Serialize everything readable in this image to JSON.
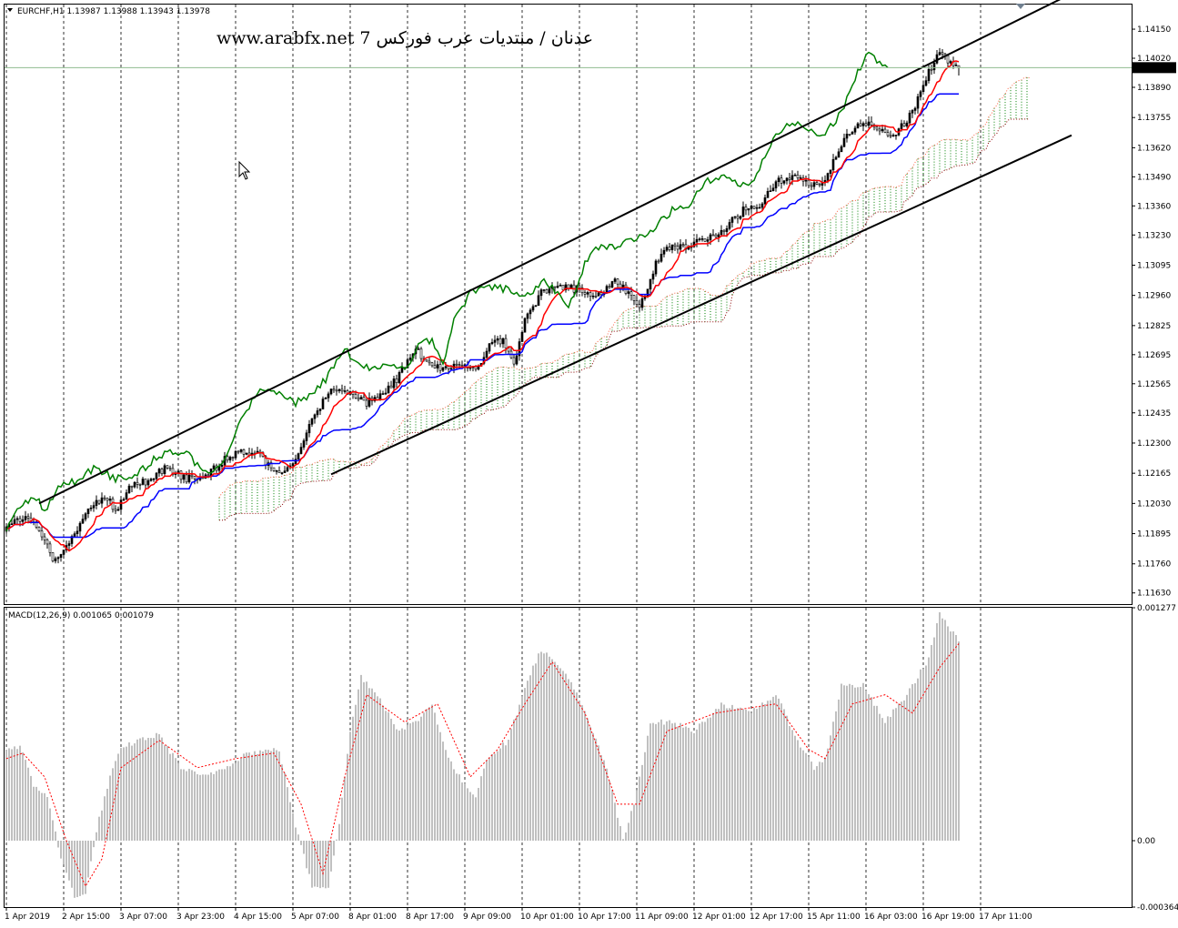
{
  "header": {
    "symbol_info": "EURCHF,H1  1.13987 1.13988 1.13943 1.13978",
    "watermark": "www.arabfx.net 7 عدنان / منتديات عرب فوركس"
  },
  "chart_data": [
    {
      "type": "candlestick",
      "title": "EURCHF,H1",
      "ohlc_last": {
        "open": 1.13987,
        "high": 1.13988,
        "low": 1.13943,
        "close": 1.13978
      },
      "current_price_label": "1.13978",
      "ylim": [
        1.1158,
        1.1426
      ],
      "y_ticks": [
        "1.14150",
        "1.14020",
        "1.13890",
        "1.13755",
        "1.13620",
        "1.13490",
        "1.13360",
        "1.13230",
        "1.13095",
        "1.12960",
        "1.12825",
        "1.12695",
        "1.12565",
        "1.12435",
        "1.12300",
        "1.12165",
        "1.12030",
        "1.11895",
        "1.11760",
        "1.11630"
      ],
      "x_ticks": [
        "1 Apr 2019",
        "2 Apr 15:00",
        "3 Apr 07:00",
        "3 Apr 23:00",
        "4 Apr 15:00",
        "5 Apr 07:00",
        "8 Apr 01:00",
        "8 Apr 17:00",
        "9 Apr 09:00",
        "10 Apr 01:00",
        "10 Apr 17:00",
        "11 Apr 09:00",
        "12 Apr 01:00",
        "12 Apr 17:00",
        "15 Apr 11:00",
        "16 Apr 03:00",
        "16 Apr 19:00",
        "17 Apr 11:00"
      ],
      "close_path_anchors": [
        [
          0,
          1.1194
        ],
        [
          8,
          1.1196
        ],
        [
          14,
          1.1188
        ],
        [
          17,
          1.1176
        ],
        [
          22,
          1.1183
        ],
        [
          30,
          1.12
        ],
        [
          36,
          1.1207
        ],
        [
          40,
          1.12
        ],
        [
          46,
          1.1212
        ],
        [
          52,
          1.1213
        ],
        [
          58,
          1.1219
        ],
        [
          66,
          1.1214
        ],
        [
          74,
          1.1216
        ],
        [
          80,
          1.1223
        ],
        [
          86,
          1.1226
        ],
        [
          92,
          1.1226
        ],
        [
          96,
          1.122
        ],
        [
          100,
          1.1216
        ],
        [
          106,
          1.1222
        ],
        [
          112,
          1.124
        ],
        [
          118,
          1.1253
        ],
        [
          124,
          1.1253
        ],
        [
          132,
          1.1248
        ],
        [
          138,
          1.1252
        ],
        [
          144,
          1.126
        ],
        [
          150,
          1.1272
        ],
        [
          156,
          1.1264
        ],
        [
          164,
          1.1264
        ],
        [
          172,
          1.1263
        ],
        [
          178,
          1.1275
        ],
        [
          182,
          1.1275
        ],
        [
          186,
          1.1266
        ],
        [
          190,
          1.1285
        ],
        [
          196,
          1.1297
        ],
        [
          204,
          1.13
        ],
        [
          212,
          1.1298
        ],
        [
          218,
          1.1295
        ],
        [
          222,
          1.1303
        ],
        [
          228,
          1.1297
        ],
        [
          232,
          1.129
        ],
        [
          234,
          1.1297
        ],
        [
          240,
          1.1316
        ],
        [
          248,
          1.1318
        ],
        [
          254,
          1.132
        ],
        [
          262,
          1.1325
        ],
        [
          270,
          1.1334
        ],
        [
          276,
          1.1337
        ],
        [
          282,
          1.1347
        ],
        [
          290,
          1.1349
        ],
        [
          296,
          1.1345
        ],
        [
          300,
          1.1347
        ],
        [
          306,
          1.1364
        ],
        [
          312,
          1.1374
        ],
        [
          320,
          1.137
        ],
        [
          326,
          1.1368
        ],
        [
          332,
          1.1378
        ],
        [
          338,
          1.1396
        ],
        [
          342,
          1.1405
        ],
        [
          346,
          1.14
        ],
        [
          349,
          1.1398
        ]
      ],
      "channel": {
        "upper": [
          [
            12,
            1.1203
          ],
          [
            349,
            1.1413
          ]
        ],
        "lower": [
          [
            119,
            1.1216
          ],
          [
            349,
            1.137
          ]
        ]
      },
      "series": [
        {
          "name": "",
          "color": "#ff0000",
          "style": "solid",
          "role": "tenkan"
        },
        {
          "name": "",
          "color": "#0000ff",
          "style": "solid",
          "role": "kijun"
        },
        {
          "name": "",
          "color": "#008000",
          "style": "solid",
          "role": "chikou"
        },
        {
          "name": "",
          "color": "#008000",
          "style": "dotted",
          "role": "cloud"
        }
      ]
    },
    {
      "type": "bar",
      "title": "MACD(12,26,9) 0.001065 0.001079",
      "ylim": [
        -0.000364,
        0.001277
      ],
      "y_ticks": [
        "0.001277",
        "0.00",
        "-0.000364"
      ],
      "hist_anchors": [
        [
          0,
          0.0005
        ],
        [
          5,
          0.00052
        ],
        [
          10,
          0.0003
        ],
        [
          15,
          0.00025
        ],
        [
          20,
          -0.0001
        ],
        [
          25,
          -0.0003
        ],
        [
          29,
          -0.0003
        ],
        [
          33,
          6e-05
        ],
        [
          38,
          0.00035
        ],
        [
          42,
          0.0005
        ],
        [
          48,
          0.00055
        ],
        [
          56,
          0.00058
        ],
        [
          64,
          0.0004
        ],
        [
          72,
          0.00035
        ],
        [
          80,
          0.0004
        ],
        [
          88,
          0.00048
        ],
        [
          100,
          0.0005
        ],
        [
          106,
          8e-05
        ],
        [
          112,
          -0.00025
        ],
        [
          118,
          -0.00025
        ],
        [
          122,
          0.0001
        ],
        [
          126,
          0.0006
        ],
        [
          130,
          0.0009
        ],
        [
          136,
          0.0008
        ],
        [
          144,
          0.0006
        ],
        [
          150,
          0.00065
        ],
        [
          156,
          0.00075
        ],
        [
          162,
          0.00045
        ],
        [
          168,
          0.0003
        ],
        [
          172,
          0.00025
        ],
        [
          176,
          0.00045
        ],
        [
          184,
          0.00055
        ],
        [
          190,
          0.00085
        ],
        [
          196,
          0.00105
        ],
        [
          206,
          0.0009
        ],
        [
          212,
          0.0007
        ],
        [
          220,
          0.0004
        ],
        [
          226,
          0.0
        ],
        [
          230,
          0.0002
        ],
        [
          236,
          0.00065
        ],
        [
          244,
          0.00065
        ],
        [
          252,
          0.0006
        ],
        [
          262,
          0.00075
        ],
        [
          272,
          0.0007
        ],
        [
          282,
          0.0008
        ],
        [
          290,
          0.00055
        ],
        [
          296,
          0.0004
        ],
        [
          300,
          0.00045
        ],
        [
          306,
          0.00085
        ],
        [
          314,
          0.00085
        ],
        [
          322,
          0.00065
        ],
        [
          330,
          0.0008
        ],
        [
          338,
          0.001
        ],
        [
          342,
          0.00125
        ],
        [
          346,
          0.00115
        ],
        [
          349,
          0.0011
        ]
      ],
      "signal_anchors": [
        [
          0,
          0.00045
        ],
        [
          6,
          0.00048
        ],
        [
          14,
          0.00035
        ],
        [
          22,
          0.0
        ],
        [
          29,
          -0.00025
        ],
        [
          35,
          -0.0001
        ],
        [
          42,
          0.0004
        ],
        [
          56,
          0.00055
        ],
        [
          70,
          0.0004
        ],
        [
          84,
          0.00045
        ],
        [
          98,
          0.00048
        ],
        [
          108,
          0.0002
        ],
        [
          116,
          -0.00018
        ],
        [
          124,
          0.00035
        ],
        [
          132,
          0.0008
        ],
        [
          146,
          0.00065
        ],
        [
          158,
          0.00075
        ],
        [
          170,
          0.00035
        ],
        [
          180,
          0.0005
        ],
        [
          190,
          0.00075
        ],
        [
          200,
          0.00098
        ],
        [
          212,
          0.0007
        ],
        [
          224,
          0.0002
        ],
        [
          232,
          0.0002
        ],
        [
          242,
          0.0006
        ],
        [
          260,
          0.0007
        ],
        [
          282,
          0.00075
        ],
        [
          294,
          0.0005
        ],
        [
          300,
          0.00045
        ],
        [
          310,
          0.00075
        ],
        [
          322,
          0.0008
        ],
        [
          332,
          0.0007
        ],
        [
          342,
          0.00095
        ],
        [
          349,
          0.00108
        ]
      ],
      "colors": {
        "histogram": "#c0c0c0",
        "signal": "#ff0000"
      }
    }
  ]
}
